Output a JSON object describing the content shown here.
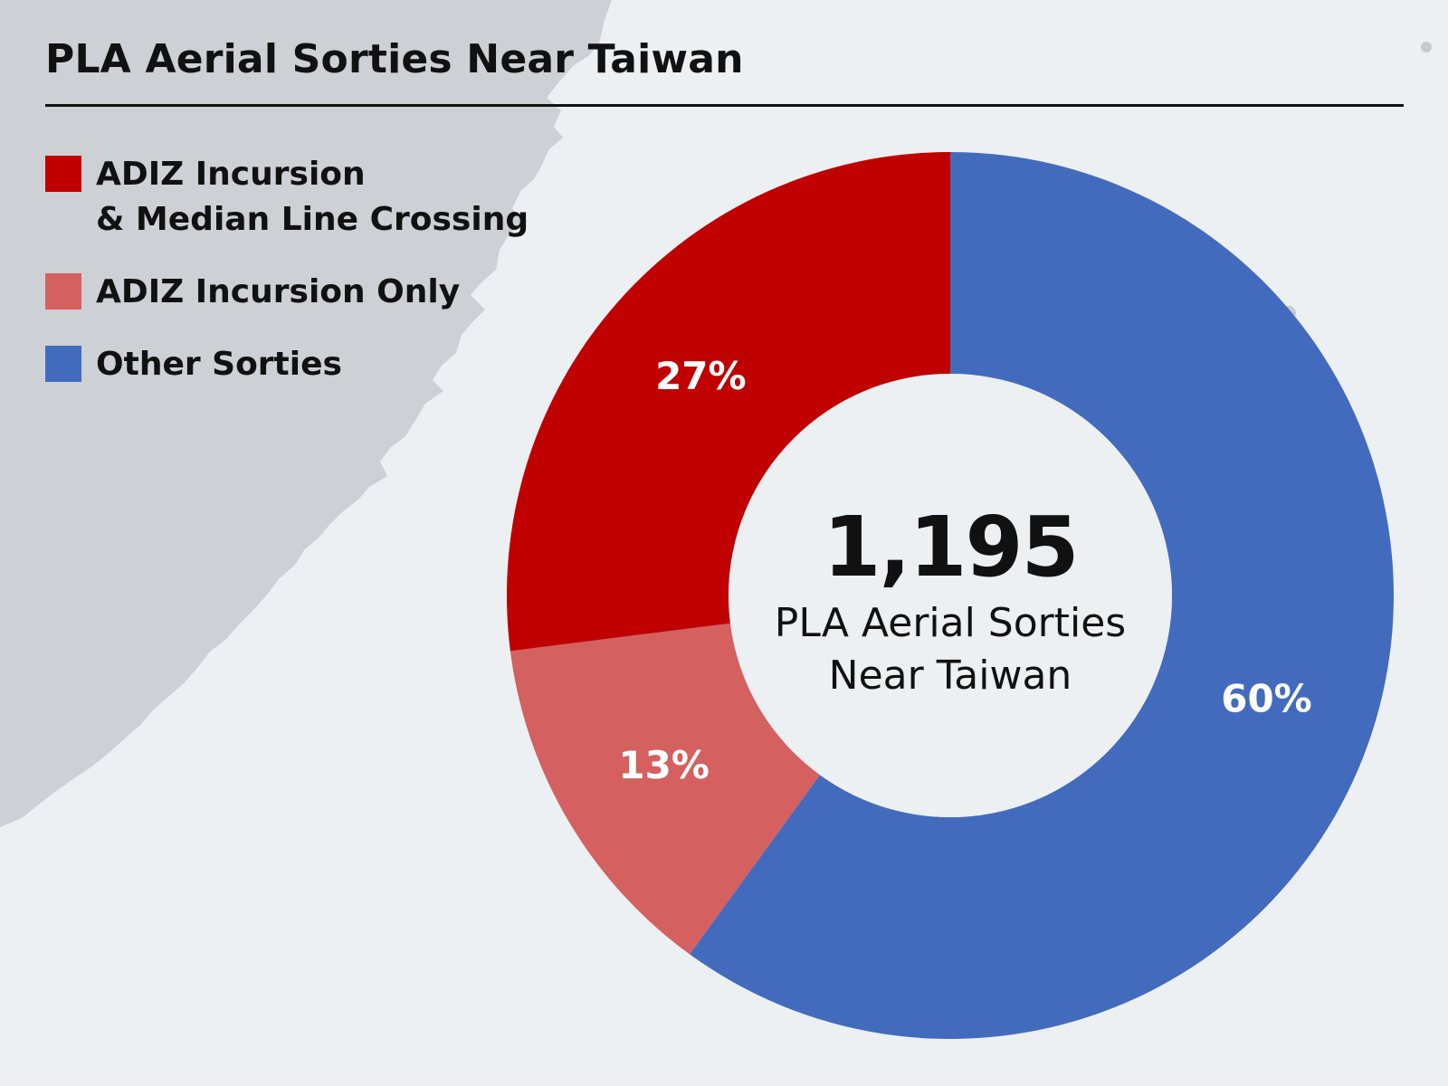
{
  "title": "PLA Aerial Sorties Near Taiwan",
  "colors": {
    "background": "#ecf0f3",
    "land": "#cdd1d5",
    "ink": "#111111"
  },
  "legend": [
    {
      "lines": [
        "ADIZ Incursion",
        "& Median Line Crossing"
      ],
      "color": "#c00000"
    },
    {
      "lines": [
        "ADIZ Incursion Only"
      ],
      "color": "#d46060"
    },
    {
      "lines": [
        "Other Sorties"
      ],
      "color": "#436bbd"
    }
  ],
  "center": {
    "total": "1,195",
    "caption_line1": "PLA Aerial Sorties",
    "caption_line2": "Near Taiwan"
  },
  "chart_data": {
    "type": "pie",
    "title": "PLA Aerial Sorties Near Taiwan",
    "total": 1195,
    "categories": [
      "ADIZ Incursion & Median Line Crossing",
      "ADIZ Incursion Only",
      "Other Sorties"
    ],
    "values": [
      27,
      13,
      60
    ],
    "labels": [
      "27%",
      "13%",
      "60%"
    ],
    "colors": [
      "#c00000",
      "#d46060",
      "#436bbd"
    ],
    "value_unit": "percent",
    "start_angle_deg": 0,
    "direction": "clockwise",
    "donut": true,
    "legend_placement": "top-left"
  }
}
